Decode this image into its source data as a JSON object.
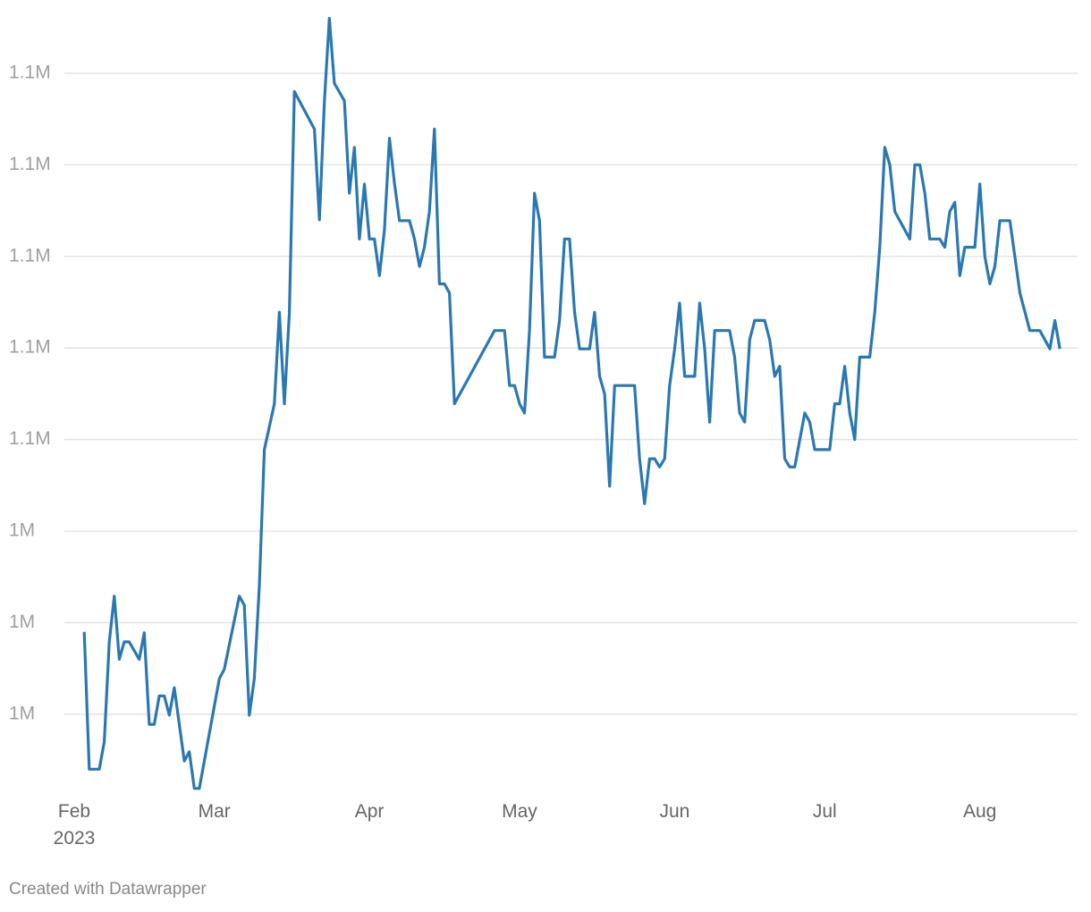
{
  "chart_data": {
    "type": "line",
    "footer": "Created with Datawrapper",
    "x": [
      2,
      3,
      5,
      6,
      7,
      8,
      9,
      10,
      11,
      13,
      14,
      15,
      16,
      17,
      18,
      19,
      20,
      22,
      23,
      24,
      25,
      29,
      30,
      33,
      34,
      35,
      36,
      37,
      38,
      40,
      41,
      42,
      43,
      44,
      48,
      49,
      50,
      51,
      52,
      54,
      55,
      56,
      57,
      58,
      59,
      60,
      61,
      62,
      63,
      64,
      65,
      67,
      68,
      69,
      70,
      71,
      72,
      73,
      74,
      75,
      76,
      84,
      86,
      87,
      88,
      89,
      90,
      91,
      92,
      93,
      94,
      96,
      97,
      98,
      99,
      100,
      101,
      103,
      104,
      105,
      106,
      107,
      108,
      112,
      113,
      114,
      115,
      116,
      117,
      118,
      119,
      120,
      121,
      122,
      124,
      125,
      126,
      127,
      128,
      131,
      132,
      133,
      134,
      135,
      136,
      138,
      139,
      140,
      141,
      142,
      143,
      144,
      146,
      147,
      148,
      151,
      152,
      153,
      154,
      155,
      156,
      157,
      159,
      160,
      161,
      162,
      163,
      164,
      167,
      168,
      169,
      170,
      171,
      173,
      174,
      175,
      176,
      177,
      178,
      180,
      181,
      182,
      183,
      184,
      185,
      187,
      189,
      191,
      193,
      195,
      196,
      197
    ],
    "series": [
      {
        "color": "#2a78b2",
        "values": [
          1029000,
          1014000,
          1014000,
          1017000,
          1027900,
          1032900,
          1026000,
          1027900,
          1027900,
          1026000,
          1028900,
          1018900,
          1018900,
          1022000,
          1022000,
          1019900,
          1022900,
          1014900,
          1015900,
          1011900,
          1011900,
          1023900,
          1024900,
          1032900,
          1031900,
          1019900,
          1023900,
          1034000,
          1048900,
          1053900,
          1063900,
          1053900,
          1063900,
          1088000,
          1083900,
          1074000,
          1087000,
          1096000,
          1088900,
          1087000,
          1076900,
          1081900,
          1071900,
          1077900,
          1071900,
          1071900,
          1067900,
          1072900,
          1082900,
          1078000,
          1073900,
          1073900,
          1071900,
          1068900,
          1071000,
          1074900,
          1083900,
          1067000,
          1067000,
          1066000,
          1053900,
          1061900,
          1061900,
          1055900,
          1055900,
          1053900,
          1052900,
          1061900,
          1076900,
          1073900,
          1059000,
          1059000,
          1063000,
          1071900,
          1071900,
          1063900,
          1059900,
          1059900,
          1063900,
          1056900,
          1055000,
          1044900,
          1055900,
          1055900,
          1047900,
          1043000,
          1047900,
          1047900,
          1047000,
          1047900,
          1055900,
          1059900,
          1064900,
          1056900,
          1056900,
          1064900,
          1059900,
          1051900,
          1061900,
          1061900,
          1059000,
          1052900,
          1051900,
          1060900,
          1063000,
          1063000,
          1060900,
          1056900,
          1058000,
          1047900,
          1047000,
          1047000,
          1052900,
          1051900,
          1048900,
          1048900,
          1053900,
          1053900,
          1058000,
          1052900,
          1050000,
          1059000,
          1059000,
          1063900,
          1071000,
          1081900,
          1080000,
          1074900,
          1071900,
          1080000,
          1080000,
          1076900,
          1071900,
          1071900,
          1071000,
          1074900,
          1075900,
          1067900,
          1071000,
          1071000,
          1077900,
          1070000,
          1067000,
          1068900,
          1073900,
          1073900,
          1066000,
          1061900,
          1061900,
          1059900,
          1063000,
          1059900
        ]
      }
    ],
    "xlim": [
      0,
      200
    ],
    "xticks": [
      {
        "value": 0,
        "label": "Feb\n2023"
      },
      {
        "value": 28,
        "label": "Mar"
      },
      {
        "value": 59,
        "label": "Apr"
      },
      {
        "value": 89,
        "label": "May"
      },
      {
        "value": 120,
        "label": "Jun"
      },
      {
        "value": 150,
        "label": "Jul"
      },
      {
        "value": 181,
        "label": "Aug"
      }
    ],
    "ylim": [
      1011000,
      1098000
    ],
    "yticks": [
      {
        "value": 1020000,
        "label": "1M"
      },
      {
        "value": 1030000,
        "label": "1M"
      },
      {
        "value": 1040000,
        "label": "1M"
      },
      {
        "value": 1050000,
        "label": "1.1M"
      },
      {
        "value": 1060000,
        "label": "1.1M"
      },
      {
        "value": 1070000,
        "label": "1.1M"
      },
      {
        "value": 1080000,
        "label": "1.1M"
      },
      {
        "value": 1090000,
        "label": "1.1M"
      }
    ],
    "grid": true
  }
}
